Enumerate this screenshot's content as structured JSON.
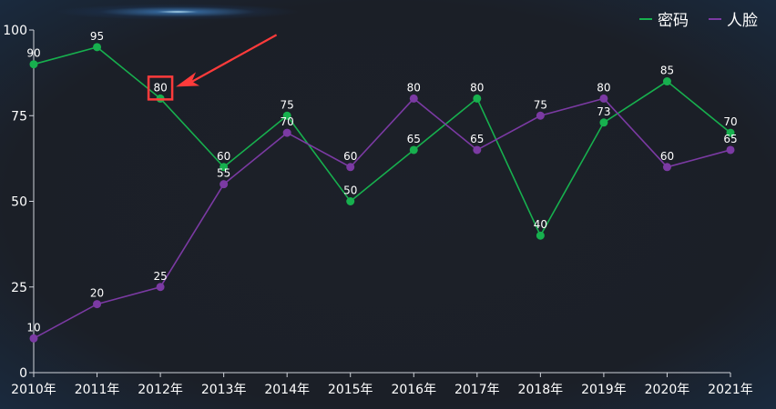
{
  "chart_data": {
    "type": "line",
    "categories": [
      "2010年",
      "2011年",
      "2012年",
      "2013年",
      "2014年",
      "2015年",
      "2016年",
      "2017年",
      "2018年",
      "2019年",
      "2020年",
      "2021年"
    ],
    "series": [
      {
        "name": "密码",
        "color": "#17b04e",
        "values": [
          90,
          95,
          80,
          60,
          75,
          50,
          65,
          80,
          40,
          73,
          85,
          70
        ]
      },
      {
        "name": "人脸",
        "color": "#7b3aa3",
        "values": [
          10,
          20,
          25,
          55,
          70,
          60,
          80,
          65,
          75,
          80,
          60,
          65
        ]
      }
    ],
    "ylim": [
      0,
      100
    ],
    "yticks": [
      0,
      25,
      50,
      75,
      100
    ],
    "legend_position": "top-right",
    "grid": false,
    "highlight": {
      "series": "密码",
      "category": "2012年",
      "color": "#ff3b3b",
      "arrow": true
    }
  }
}
